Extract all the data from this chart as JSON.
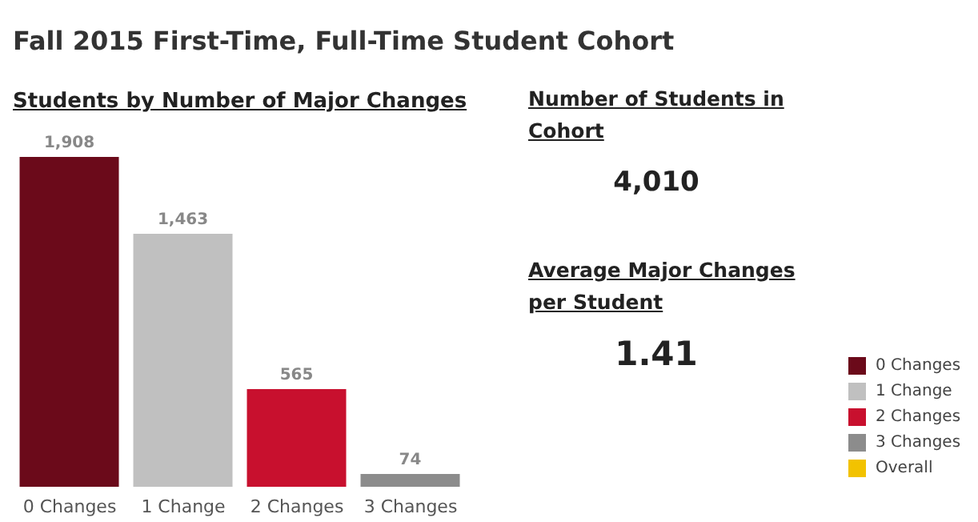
{
  "chart_data": [
    {
      "type": "bar",
      "title": "Fall 2015 First-Time, Full-Time Student Cohort",
      "subtitle": "Students by Number of Major Changes",
      "categories": [
        "0 Changes",
        "1 Change",
        "2 Changes",
        "3 Changes"
      ],
      "stacked": true,
      "legend": "right",
      "series": [
        {
          "name": "0 Changes",
          "color": "#6b0a1a",
          "values": [
            1908,
            null,
            null,
            null
          ],
          "value_labels": [
            "1,908",
            null,
            null,
            null
          ]
        },
        {
          "name": "1 Change",
          "color": "#c0c0c0",
          "values": [
            null,
            1463,
            null,
            null
          ],
          "value_labels": [
            null,
            "1,463",
            null,
            null
          ]
        },
        {
          "name": "2 Changes",
          "color": "#c8102e",
          "values": [
            null,
            null,
            565,
            null
          ],
          "value_labels": [
            null,
            null,
            "565",
            null
          ]
        },
        {
          "name": "3 Changes",
          "color": "#8c8c8c",
          "values": [
            null,
            null,
            null,
            74
          ],
          "value_labels": [
            null,
            null,
            null,
            "74"
          ]
        },
        {
          "name": "Overall",
          "color": "#f2c200",
          "values": [
            null,
            null,
            null,
            null
          ]
        }
      ]
    },
    {
      "type": "other",
      "categories": [
        "Number of Students in Cohort",
        "Average Major Changes per Student"
      ],
      "value_labels": [
        "4,010",
        "1.41"
      ]
    }
  ]
}
